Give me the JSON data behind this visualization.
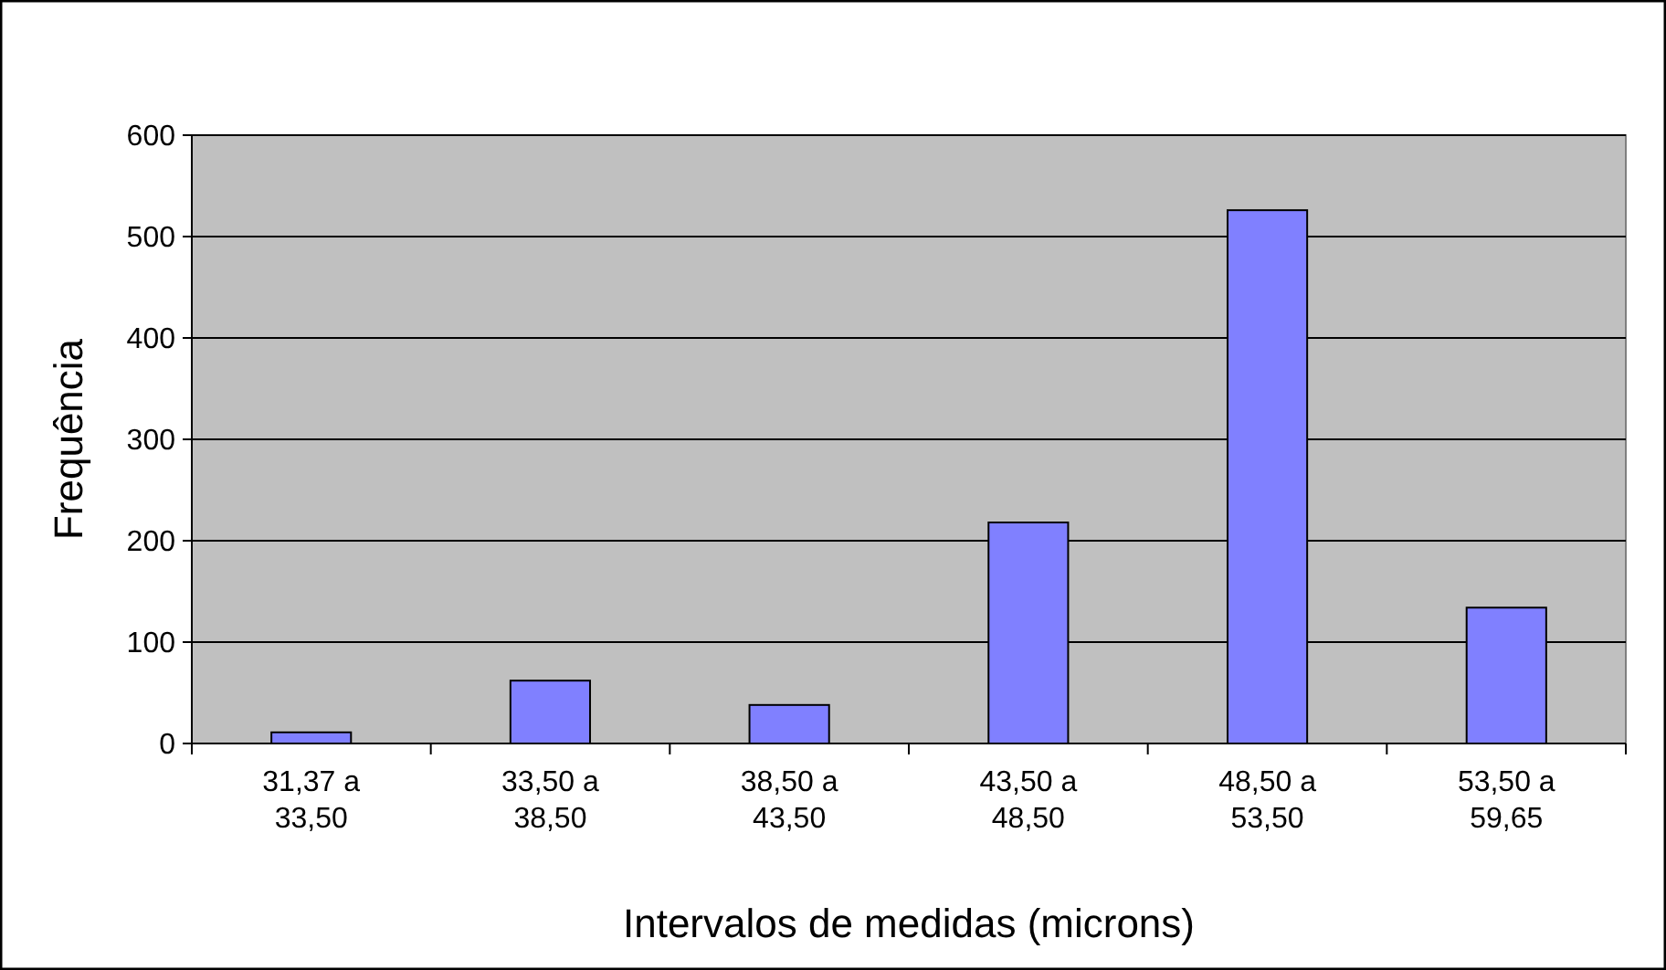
{
  "chart_data": {
    "type": "bar",
    "xlabel": "Intervalos de medidas  (microns)",
    "ylabel": "Frequência",
    "categories": [
      "31,37 a 33,50",
      "33,50 a 38,50",
      "38,50 a 43,50",
      "43,50 a 48,50",
      "48,50 a 53,50",
      "53,50 a 59,65"
    ],
    "values": [
      11,
      62,
      38,
      218,
      526,
      134
    ],
    "color": "#8080ff",
    "ylim": [
      0,
      600
    ],
    "yticks": [
      0,
      100,
      200,
      300,
      400,
      500,
      600
    ],
    "grid": "y"
  }
}
